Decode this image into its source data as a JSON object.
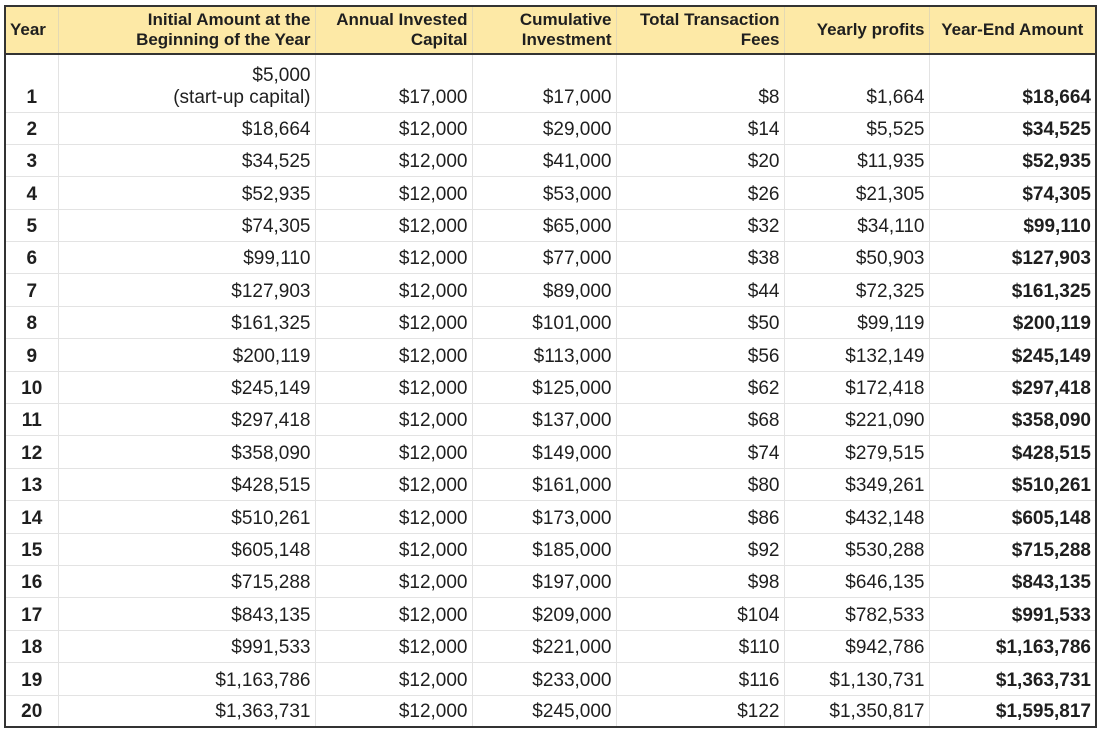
{
  "table": {
    "headers": [
      "Year",
      "Initial Amount at the Beginning of the Year",
      "Annual Invested Capital",
      "Cumulative Investment",
      "Total Transaction Fees",
      "Yearly profits",
      "Year-End Amount"
    ],
    "header_lines": {
      "initial": [
        "Initial Amount at the",
        "Beginning of the Year"
      ],
      "annual": [
        "Annual Invested",
        "Capital"
      ],
      "cumulative": [
        "Cumulative",
        "Investment"
      ],
      "fees": [
        "Total Transaction",
        "Fees"
      ]
    },
    "first_row_initial": [
      "$5,000",
      "(start-up capital)"
    ],
    "rows": [
      {
        "year": "1",
        "initial": "$5,000 (start-up capital)",
        "annual": "$17,000",
        "cumulative": "$17,000",
        "fees": "$8",
        "profits": "$1,664",
        "end": "$18,664"
      },
      {
        "year": "2",
        "initial": "$18,664",
        "annual": "$12,000",
        "cumulative": "$29,000",
        "fees": "$14",
        "profits": "$5,525",
        "end": "$34,525"
      },
      {
        "year": "3",
        "initial": "$34,525",
        "annual": "$12,000",
        "cumulative": "$41,000",
        "fees": "$20",
        "profits": "$11,935",
        "end": "$52,935"
      },
      {
        "year": "4",
        "initial": "$52,935",
        "annual": "$12,000",
        "cumulative": "$53,000",
        "fees": "$26",
        "profits": "$21,305",
        "end": "$74,305"
      },
      {
        "year": "5",
        "initial": "$74,305",
        "annual": "$12,000",
        "cumulative": "$65,000",
        "fees": "$32",
        "profits": "$34,110",
        "end": "$99,110"
      },
      {
        "year": "6",
        "initial": "$99,110",
        "annual": "$12,000",
        "cumulative": "$77,000",
        "fees": "$38",
        "profits": "$50,903",
        "end": "$127,903"
      },
      {
        "year": "7",
        "initial": "$127,903",
        "annual": "$12,000",
        "cumulative": "$89,000",
        "fees": "$44",
        "profits": "$72,325",
        "end": "$161,325"
      },
      {
        "year": "8",
        "initial": "$161,325",
        "annual": "$12,000",
        "cumulative": "$101,000",
        "fees": "$50",
        "profits": "$99,119",
        "end": "$200,119"
      },
      {
        "year": "9",
        "initial": "$200,119",
        "annual": "$12,000",
        "cumulative": "$113,000",
        "fees": "$56",
        "profits": "$132,149",
        "end": "$245,149"
      },
      {
        "year": "10",
        "initial": "$245,149",
        "annual": "$12,000",
        "cumulative": "$125,000",
        "fees": "$62",
        "profits": "$172,418",
        "end": "$297,418"
      },
      {
        "year": "11",
        "initial": "$297,418",
        "annual": "$12,000",
        "cumulative": "$137,000",
        "fees": "$68",
        "profits": "$221,090",
        "end": "$358,090"
      },
      {
        "year": "12",
        "initial": "$358,090",
        "annual": "$12,000",
        "cumulative": "$149,000",
        "fees": "$74",
        "profits": "$279,515",
        "end": "$428,515"
      },
      {
        "year": "13",
        "initial": "$428,515",
        "annual": "$12,000",
        "cumulative": "$161,000",
        "fees": "$80",
        "profits": "$349,261",
        "end": "$510,261"
      },
      {
        "year": "14",
        "initial": "$510,261",
        "annual": "$12,000",
        "cumulative": "$173,000",
        "fees": "$86",
        "profits": "$432,148",
        "end": "$605,148"
      },
      {
        "year": "15",
        "initial": "$605,148",
        "annual": "$12,000",
        "cumulative": "$185,000",
        "fees": "$92",
        "profits": "$530,288",
        "end": "$715,288"
      },
      {
        "year": "16",
        "initial": "$715,288",
        "annual": "$12,000",
        "cumulative": "$197,000",
        "fees": "$98",
        "profits": "$646,135",
        "end": "$843,135"
      },
      {
        "year": "17",
        "initial": "$843,135",
        "annual": "$12,000",
        "cumulative": "$209,000",
        "fees": "$104",
        "profits": "$782,533",
        "end": "$991,533"
      },
      {
        "year": "18",
        "initial": "$991,533",
        "annual": "$12,000",
        "cumulative": "$221,000",
        "fees": "$110",
        "profits": "$942,786",
        "end": "$1,163,786"
      },
      {
        "year": "19",
        "initial": "$1,163,786",
        "annual": "$12,000",
        "cumulative": "$233,000",
        "fees": "$116",
        "profits": "$1,130,731",
        "end": "$1,363,731"
      },
      {
        "year": "20",
        "initial": "$1,363,731",
        "annual": "$12,000",
        "cumulative": "$245,000",
        "fees": "$122",
        "profits": "$1,350,817",
        "end": "$1,595,817"
      }
    ]
  },
  "colors": {
    "header_background": "#fde9a6",
    "outer_border": "#333333",
    "grid_line": "#e3e3e3"
  }
}
